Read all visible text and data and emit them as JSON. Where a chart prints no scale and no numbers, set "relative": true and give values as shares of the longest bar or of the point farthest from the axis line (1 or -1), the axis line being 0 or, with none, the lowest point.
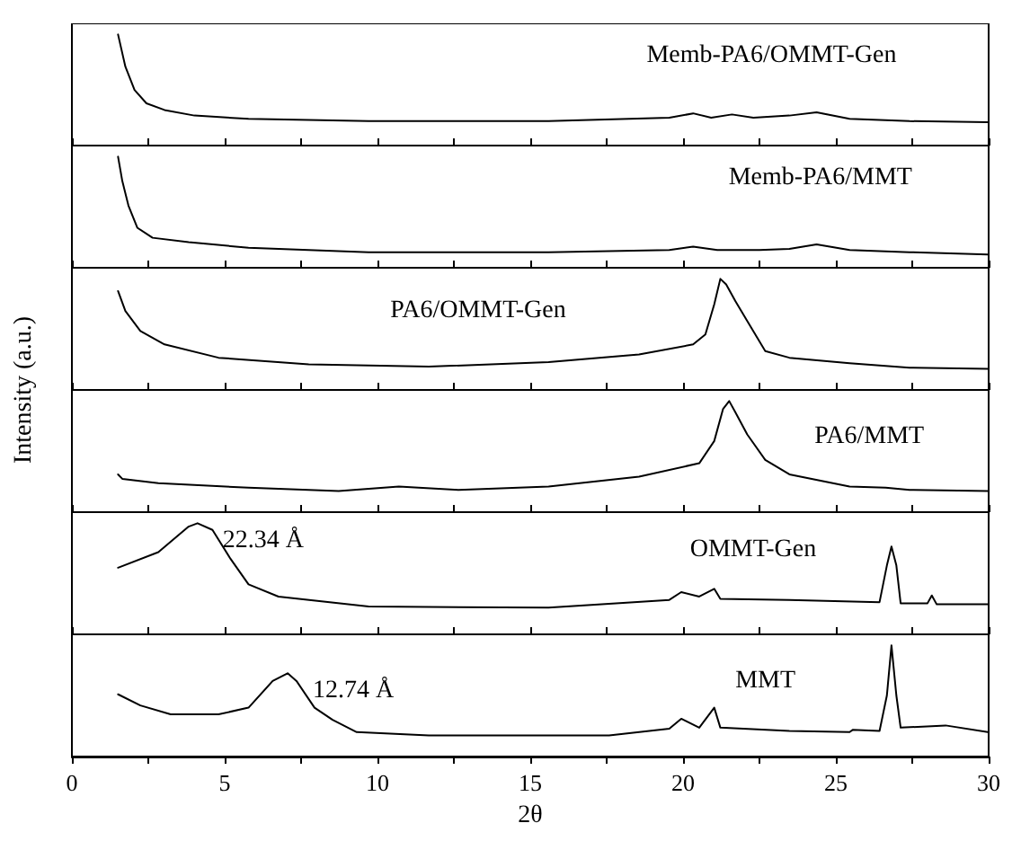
{
  "chart_data": [
    {
      "type": "line",
      "title": "Memb-PA6/OMMT-Gen",
      "relative": true,
      "color": "#000000",
      "marker": "none",
      "line_style": "solid",
      "grid": false,
      "tick_labels": false,
      "xlim": [
        0,
        30
      ],
      "xticks": [
        0,
        {
          "value": 2.5,
          "label": null
        },
        5,
        {
          "value": 7.5,
          "label": null
        },
        10,
        {
          "value": 12.5,
          "label": null
        },
        15,
        {
          "value": 17.5,
          "label": null
        },
        20,
        {
          "value": 22.5,
          "label": null
        },
        25,
        {
          "value": 27.5,
          "label": null
        },
        30
      ],
      "x": [
        1.51,
        1.75,
        2.05,
        2.44,
        3.03,
        4.01,
        5.78,
        9.71,
        15.6,
        19.55,
        20.33,
        20.92,
        21.6,
        22.3,
        23.48,
        24.37,
        25.45,
        27.41,
        29.97
      ],
      "values": [
        1.0,
        0.71,
        0.5,
        0.38,
        0.32,
        0.27,
        0.24,
        0.22,
        0.22,
        0.25,
        0.29,
        0.25,
        0.28,
        0.25,
        0.27,
        0.3,
        0.24,
        0.22,
        0.21
      ]
    },
    {
      "type": "line",
      "title": "Memb-PA6/MMT",
      "relative": true,
      "color": "#000000",
      "marker": "none",
      "line_style": "solid",
      "grid": false,
      "tick_labels": false,
      "xlim": [
        0,
        30
      ],
      "xticks": [
        0,
        {
          "value": 2.5,
          "label": null
        },
        5,
        {
          "value": 7.5,
          "label": null
        },
        10,
        {
          "value": 12.5,
          "label": null
        },
        15,
        {
          "value": 17.5,
          "label": null
        },
        20,
        {
          "value": 22.5,
          "label": null
        },
        25,
        {
          "value": 27.5,
          "label": null
        },
        30
      ],
      "x": [
        1.51,
        1.65,
        1.85,
        2.14,
        2.64,
        3.82,
        5.78,
        9.71,
        15.6,
        19.55,
        20.33,
        21.12,
        22.5,
        23.48,
        24.37,
        25.45,
        27.41,
        29.97
      ],
      "values": [
        1.0,
        0.78,
        0.56,
        0.36,
        0.27,
        0.23,
        0.18,
        0.14,
        0.14,
        0.16,
        0.19,
        0.16,
        0.16,
        0.17,
        0.21,
        0.16,
        0.14,
        0.12
      ]
    },
    {
      "type": "line",
      "title": "PA6/OMMT-Gen",
      "relative": true,
      "color": "#000000",
      "marker": "none",
      "line_style": "solid",
      "grid": false,
      "tick_labels": false,
      "ylabel": "Intensity (a.u.)",
      "xlim": [
        0,
        30
      ],
      "xticks": [
        0,
        {
          "value": 2.5,
          "label": null
        },
        5,
        {
          "value": 7.5,
          "label": null
        },
        10,
        {
          "value": 12.5,
          "label": null
        },
        15,
        {
          "value": 17.5,
          "label": null
        },
        20,
        {
          "value": 22.5,
          "label": null
        },
        25,
        {
          "value": 27.5,
          "label": null
        },
        30
      ],
      "x": [
        1.51,
        1.75,
        2.24,
        3.03,
        4.8,
        7.75,
        11.68,
        15.6,
        18.56,
        20.33,
        20.73,
        21.02,
        21.22,
        21.41,
        21.71,
        22.1,
        22.69,
        23.48,
        25.45,
        27.41,
        29.97
      ],
      "values": [
        0.89,
        0.71,
        0.53,
        0.41,
        0.29,
        0.23,
        0.21,
        0.25,
        0.32,
        0.41,
        0.5,
        0.77,
        1.0,
        0.95,
        0.8,
        0.62,
        0.35,
        0.29,
        0.24,
        0.2,
        0.19
      ]
    },
    {
      "type": "line",
      "title": "PA6/MMT",
      "relative": true,
      "color": "#000000",
      "marker": "none",
      "line_style": "solid",
      "grid": false,
      "tick_labels": false,
      "xlim": [
        0,
        30
      ],
      "xticks": [
        0,
        {
          "value": 2.5,
          "label": null
        },
        5,
        {
          "value": 7.5,
          "label": null
        },
        10,
        {
          "value": 12.5,
          "label": null
        },
        15,
        {
          "value": 17.5,
          "label": null
        },
        20,
        {
          "value": 22.5,
          "label": null
        },
        25,
        {
          "value": 27.5,
          "label": null
        },
        30
      ],
      "x": [
        1.51,
        1.65,
        2.83,
        5.78,
        8.73,
        10.7,
        12.66,
        15.6,
        18.56,
        20.53,
        21.02,
        21.31,
        21.51,
        21.71,
        22.1,
        22.69,
        23.48,
        25.45,
        26.63,
        27.41,
        29.97
      ],
      "values": [
        0.34,
        0.3,
        0.26,
        0.22,
        0.19,
        0.23,
        0.2,
        0.23,
        0.32,
        0.44,
        0.64,
        0.93,
        1.0,
        0.9,
        0.7,
        0.47,
        0.34,
        0.23,
        0.22,
        0.2,
        0.19
      ]
    },
    {
      "type": "line",
      "title": "OMMT-Gen",
      "relative": true,
      "color": "#000000",
      "marker": "none",
      "line_style": "solid",
      "grid": false,
      "tick_labels": false,
      "xlim": [
        0,
        30
      ],
      "xticks": [
        0,
        {
          "value": 2.5,
          "label": null
        },
        5,
        {
          "value": 7.5,
          "label": null
        },
        10,
        {
          "value": 12.5,
          "label": null
        },
        15,
        {
          "value": 17.5,
          "label": null
        },
        20,
        {
          "value": 22.5,
          "label": null
        },
        25,
        {
          "value": 27.5,
          "label": null
        },
        30
      ],
      "annotations": [
        {
          "text": "22.34 Å",
          "x": 4.11,
          "y": 1.0
        }
      ],
      "x": [
        1.51,
        2.83,
        3.82,
        4.11,
        4.6,
        5.19,
        5.78,
        6.76,
        9.71,
        15.6,
        19.55,
        19.94,
        20.53,
        21.02,
        21.22,
        23.48,
        26.43,
        26.67,
        26.82,
        26.98,
        27.12,
        28.0,
        28.14,
        28.3,
        29.97
      ],
      "values": [
        0.6,
        0.74,
        0.97,
        1.0,
        0.94,
        0.68,
        0.45,
        0.34,
        0.25,
        0.24,
        0.31,
        0.38,
        0.34,
        0.41,
        0.32,
        0.31,
        0.29,
        0.62,
        0.79,
        0.62,
        0.28,
        0.28,
        0.35,
        0.27,
        0.27
      ]
    },
    {
      "type": "line",
      "title": "MMT",
      "relative": true,
      "color": "#000000",
      "marker": "none",
      "line_style": "solid",
      "grid": false,
      "tick_labels": "x",
      "xlabel": "2θ",
      "xlim": [
        0,
        30
      ],
      "xticks": [
        0,
        {
          "value": 2.5,
          "label": null
        },
        5,
        {
          "value": 7.5,
          "label": null
        },
        10,
        {
          "value": 12.5,
          "label": null
        },
        15,
        {
          "value": 17.5,
          "label": null
        },
        20,
        {
          "value": 22.5,
          "label": null
        },
        25,
        {
          "value": 27.5,
          "label": null
        },
        30
      ],
      "annotations": [
        {
          "text": "12.74 Å",
          "x": 7.06,
          "y": 0.75
        }
      ],
      "x": [
        1.51,
        2.24,
        3.23,
        4.8,
        5.78,
        6.57,
        7.06,
        7.35,
        7.94,
        8.53,
        9.32,
        11.68,
        17.58,
        19.55,
        19.94,
        20.53,
        21.02,
        21.22,
        23.48,
        25.45,
        25.55,
        26.43,
        26.67,
        26.82,
        26.98,
        27.12,
        28.59,
        29.97
      ],
      "values": [
        0.56,
        0.46,
        0.38,
        0.38,
        0.44,
        0.68,
        0.75,
        0.68,
        0.44,
        0.33,
        0.22,
        0.19,
        0.19,
        0.25,
        0.34,
        0.26,
        0.44,
        0.26,
        0.23,
        0.22,
        0.24,
        0.23,
        0.55,
        1.0,
        0.55,
        0.26,
        0.28,
        0.22
      ]
    }
  ]
}
